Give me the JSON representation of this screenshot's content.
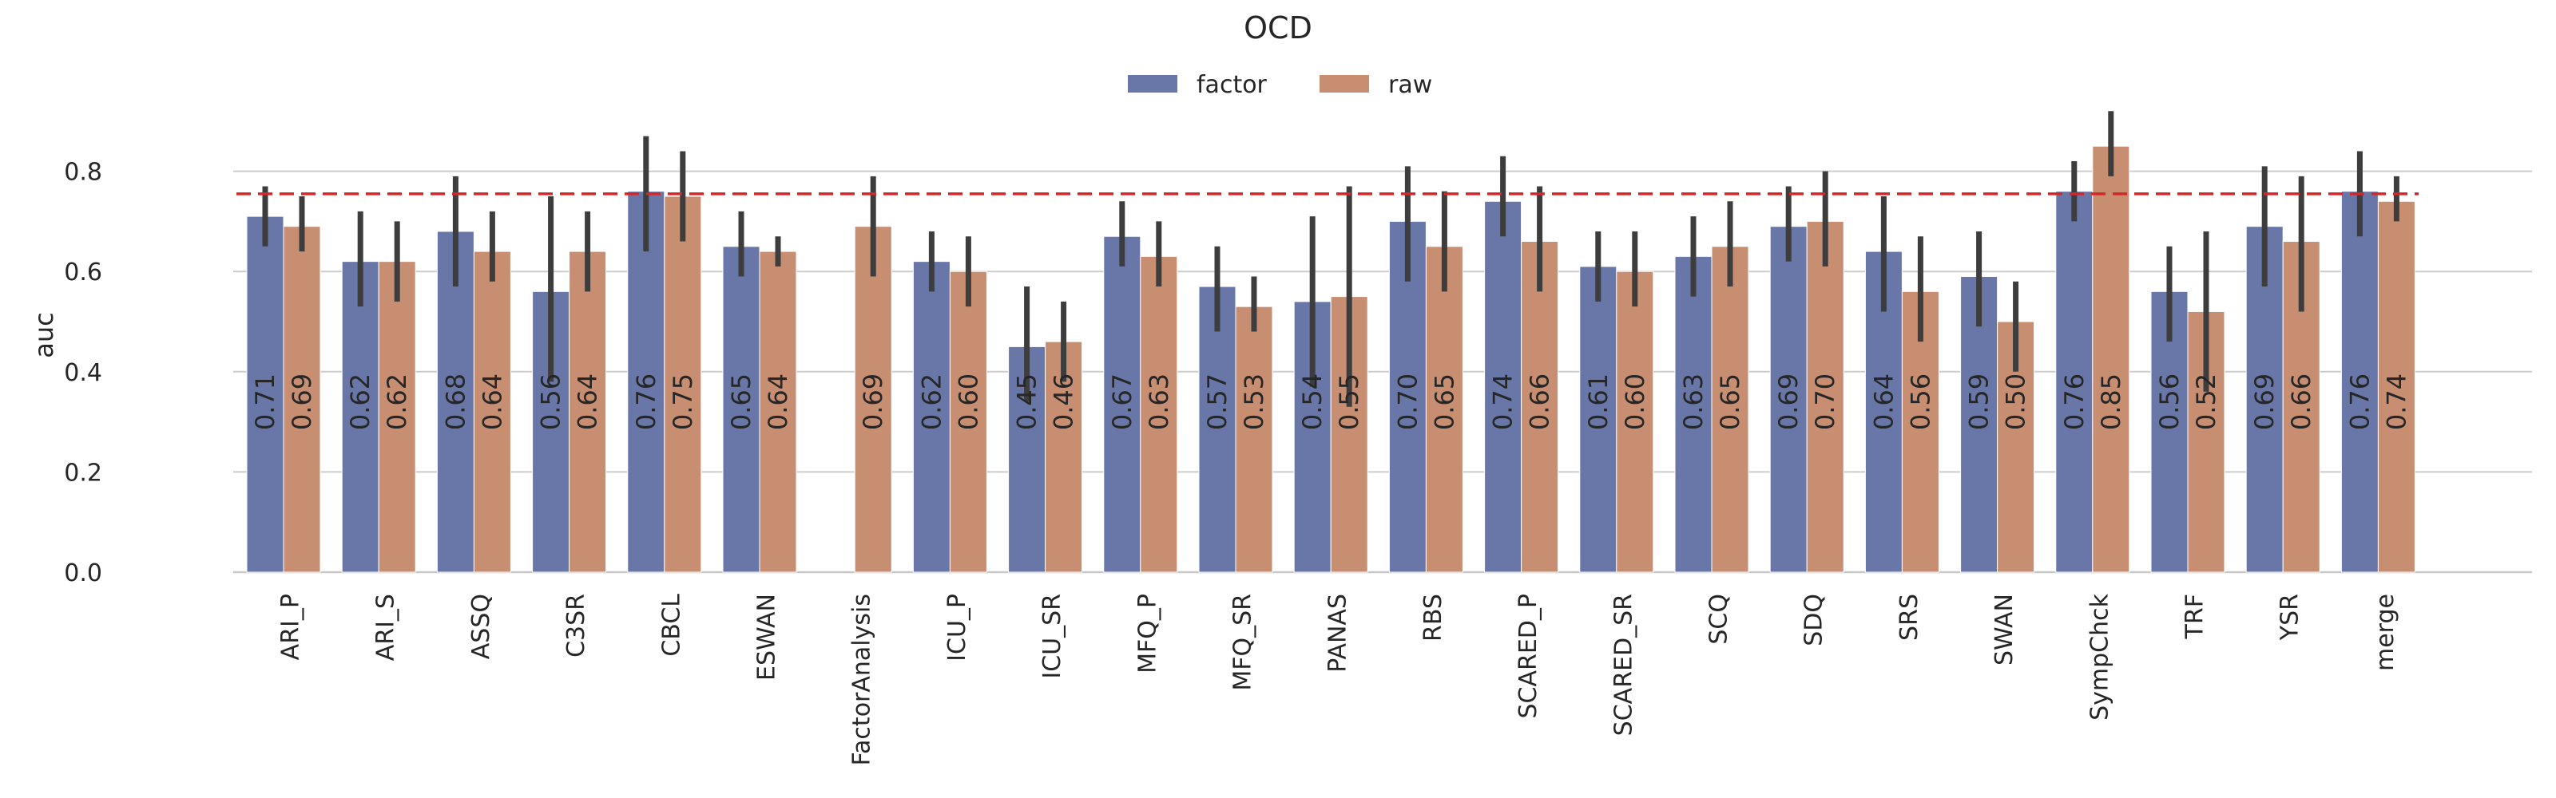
{
  "chart_data": {
    "type": "bar",
    "title": "OCD",
    "xlabel": "",
    "ylabel": "auc",
    "ylim": [
      0,
      0.95
    ],
    "yticks": [
      0.0,
      0.2,
      0.4,
      0.6,
      0.8
    ],
    "ytick_labels": [
      "0.0",
      "0.2",
      "0.4",
      "0.6",
      "0.8"
    ],
    "grid": "horizontal",
    "legend_position": "top-center",
    "reference_line": 0.755,
    "reference_line_color": "#d62728",
    "categories": [
      "ARI_P",
      "ARI_S",
      "ASSQ",
      "C3SR",
      "CBCL",
      "ESWAN",
      "FactorAnalysis",
      "ICU_P",
      "ICU_SR",
      "MFQ_P",
      "MFQ_SR",
      "PANAS",
      "RBS",
      "SCARED_P",
      "SCARED_SR",
      "SCQ",
      "SDQ",
      "SRS",
      "SWAN",
      "SympChck",
      "TRF",
      "YSR",
      "merge"
    ],
    "series": [
      {
        "name": "factor",
        "color": "#6977a8",
        "values": [
          0.71,
          0.62,
          0.68,
          0.56,
          0.76,
          0.65,
          null,
          0.62,
          0.45,
          0.67,
          0.57,
          0.54,
          0.7,
          0.74,
          0.61,
          0.63,
          0.69,
          0.64,
          0.59,
          0.76,
          0.56,
          0.69,
          0.76
        ],
        "labels": [
          "0.71",
          "0.62",
          "0.68",
          "0.56",
          "0.76",
          "0.65",
          "",
          "0.62",
          "0.45",
          "0.67",
          "0.57",
          "0.54",
          "0.70",
          "0.74",
          "0.61",
          "0.63",
          "0.69",
          "0.64",
          "0.59",
          "0.76",
          "0.56",
          "0.69",
          "0.76"
        ],
        "err_low": [
          0.65,
          0.53,
          0.57,
          0.38,
          0.64,
          0.59,
          null,
          0.56,
          0.34,
          0.61,
          0.48,
          0.37,
          0.58,
          0.67,
          0.54,
          0.55,
          0.62,
          0.52,
          0.49,
          0.7,
          0.46,
          0.57,
          0.67
        ],
        "err_high": [
          0.77,
          0.72,
          0.79,
          0.75,
          0.87,
          0.72,
          null,
          0.68,
          0.57,
          0.74,
          0.65,
          0.71,
          0.81,
          0.83,
          0.68,
          0.71,
          0.77,
          0.75,
          0.68,
          0.82,
          0.65,
          0.81,
          0.84
        ]
      },
      {
        "name": "raw",
        "color": "#c88e72",
        "values": [
          0.69,
          0.62,
          0.64,
          0.64,
          0.75,
          0.64,
          0.69,
          0.6,
          0.46,
          0.63,
          0.53,
          0.55,
          0.65,
          0.66,
          0.6,
          0.65,
          0.7,
          0.56,
          0.5,
          0.85,
          0.52,
          0.66,
          0.74
        ],
        "labels": [
          "0.69",
          "0.62",
          "0.64",
          "0.64",
          "0.75",
          "0.64",
          "0.69",
          "0.60",
          "0.46",
          "0.63",
          "0.53",
          "0.55",
          "0.65",
          "0.66",
          "0.60",
          "0.65",
          "0.70",
          "0.56",
          "0.50",
          "0.85",
          "0.52",
          "0.66",
          "0.74"
        ],
        "err_low": [
          0.64,
          0.54,
          0.58,
          0.56,
          0.66,
          0.61,
          0.59,
          0.53,
          0.38,
          0.57,
          0.48,
          0.33,
          0.56,
          0.56,
          0.53,
          0.57,
          0.61,
          0.46,
          0.4,
          0.79,
          0.36,
          0.52,
          0.7
        ],
        "err_high": [
          0.75,
          0.7,
          0.72,
          0.72,
          0.84,
          0.67,
          0.79,
          0.67,
          0.54,
          0.7,
          0.59,
          0.77,
          0.76,
          0.77,
          0.68,
          0.74,
          0.8,
          0.67,
          0.58,
          0.92,
          0.68,
          0.79,
          0.79
        ]
      }
    ]
  }
}
